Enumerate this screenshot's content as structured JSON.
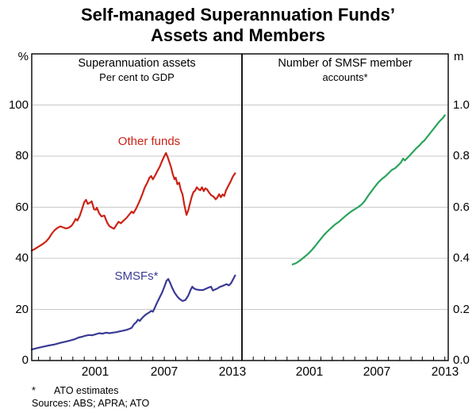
{
  "title": {
    "line1": "Self-managed Superannuation Funds’",
    "line2": "Assets and Members"
  },
  "footnote": {
    "marker": "*",
    "text": "ATO estimates"
  },
  "sources": "Sources: ABS; APRA; ATO",
  "chart_data": {
    "type": "line",
    "background": "#ffffff",
    "grid_color": "#c9c9c9",
    "frame_color": "#000000",
    "px": [
      40,
      565
    ],
    "py": [
      68,
      455
    ],
    "divider_x": 305,
    "panels": [
      {
        "name": "superannuation-assets",
        "header_line1": "Superannuation assets",
        "header_line2": "Per cent to GDP",
        "unit": "%",
        "px": [
          40,
          305
        ],
        "xlim": [
          1995.4,
          2013.8
        ],
        "ylim": [
          0,
          120
        ],
        "yticks": [
          0,
          20,
          40,
          60,
          80,
          100
        ],
        "ytick_labels": [
          "0",
          "20",
          "40",
          "60",
          "80",
          "100"
        ],
        "xtick_labels": [
          "2001",
          "2007",
          "2013"
        ],
        "xtick_label_years": [
          2001,
          2007,
          2013
        ],
        "minor_tick_years": {
          "start": 1996,
          "end": 2013
        },
        "series": [
          {
            "name": "Other funds",
            "color": "#cb2316",
            "points": [
              [
                1995.4,
                43.0
              ],
              [
                1995.65,
                43.6
              ],
              [
                1995.9,
                44.3
              ],
              [
                1996.15,
                45.0
              ],
              [
                1996.4,
                45.7
              ],
              [
                1996.65,
                46.6
              ],
              [
                1996.9,
                47.8
              ],
              [
                1997.15,
                49.6
              ],
              [
                1997.4,
                51.0
              ],
              [
                1997.65,
                51.9
              ],
              [
                1997.9,
                52.5
              ],
              [
                1998.15,
                52.1
              ],
              [
                1998.4,
                51.7
              ],
              [
                1998.65,
                52.0
              ],
              [
                1998.9,
                52.8
              ],
              [
                1999.1,
                54.2
              ],
              [
                1999.25,
                55.4
              ],
              [
                1999.4,
                54.8
              ],
              [
                1999.6,
                56.6
              ],
              [
                1999.8,
                59.3
              ],
              [
                2000.0,
                62.0
              ],
              [
                2000.15,
                62.9
              ],
              [
                2000.3,
                61.3
              ],
              [
                2000.5,
                61.8
              ],
              [
                2000.65,
                62.3
              ],
              [
                2000.85,
                59.2
              ],
              [
                2001.0,
                59.0
              ],
              [
                2001.1,
                59.8
              ],
              [
                2001.3,
                57.6
              ],
              [
                2001.5,
                56.4
              ],
              [
                2001.75,
                56.7
              ],
              [
                2002.0,
                54.0
              ],
              [
                2002.2,
                52.6
              ],
              [
                2002.45,
                51.9
              ],
              [
                2002.6,
                51.6
              ],
              [
                2002.8,
                53.0
              ],
              [
                2003.0,
                54.3
              ],
              [
                2003.2,
                53.7
              ],
              [
                2003.45,
                54.8
              ],
              [
                2003.7,
                55.8
              ],
              [
                2003.95,
                57.2
              ],
              [
                2004.15,
                58.3
              ],
              [
                2004.3,
                57.7
              ],
              [
                2004.5,
                59.2
              ],
              [
                2004.7,
                61.0
              ],
              [
                2004.9,
                63.0
              ],
              [
                2005.1,
                65.3
              ],
              [
                2005.3,
                67.8
              ],
              [
                2005.5,
                69.5
              ],
              [
                2005.7,
                71.5
              ],
              [
                2005.85,
                72.2
              ],
              [
                2006.0,
                70.9
              ],
              [
                2006.2,
                72.4
              ],
              [
                2006.4,
                74.2
              ],
              [
                2006.6,
                75.8
              ],
              [
                2006.8,
                78.0
              ],
              [
                2007.0,
                80.0
              ],
              [
                2007.15,
                81.2
              ],
              [
                2007.3,
                79.6
              ],
              [
                2007.45,
                77.6
              ],
              [
                2007.6,
                75.6
              ],
              [
                2007.75,
                72.8
              ],
              [
                2007.9,
                70.9
              ],
              [
                2008.0,
                71.6
              ],
              [
                2008.15,
                69.0
              ],
              [
                2008.3,
                69.6
              ],
              [
                2008.45,
                66.8
              ],
              [
                2008.6,
                65.0
              ],
              [
                2008.75,
                61.0
              ],
              [
                2008.95,
                57.0
              ],
              [
                2009.1,
                58.8
              ],
              [
                2009.25,
                61.5
              ],
              [
                2009.4,
                64.0
              ],
              [
                2009.55,
                65.9
              ],
              [
                2009.7,
                66.5
              ],
              [
                2009.85,
                67.8
              ],
              [
                2010.0,
                67.0
              ],
              [
                2010.15,
                66.6
              ],
              [
                2010.3,
                67.8
              ],
              [
                2010.45,
                66.3
              ],
              [
                2010.6,
                67.4
              ],
              [
                2010.75,
                66.9
              ],
              [
                2010.9,
                65.9
              ],
              [
                2011.1,
                64.7
              ],
              [
                2011.3,
                64.2
              ],
              [
                2011.5,
                63.1
              ],
              [
                2011.65,
                63.8
              ],
              [
                2011.8,
                65.1
              ],
              [
                2011.95,
                63.9
              ],
              [
                2012.1,
                65.0
              ],
              [
                2012.25,
                64.4
              ],
              [
                2012.4,
                66.5
              ],
              [
                2012.6,
                68.3
              ],
              [
                2012.8,
                70.0
              ],
              [
                2013.0,
                72.0
              ],
              [
                2013.2,
                73.3
              ]
            ]
          },
          {
            "name": "SMSFs*",
            "color": "#3a3a94",
            "points": [
              [
                1995.4,
                4.3
              ],
              [
                1995.9,
                4.9
              ],
              [
                1996.4,
                5.4
              ],
              [
                1996.9,
                5.9
              ],
              [
                1997.4,
                6.3
              ],
              [
                1997.9,
                6.9
              ],
              [
                1998.4,
                7.4
              ],
              [
                1998.9,
                8.0
              ],
              [
                1999.2,
                8.4
              ],
              [
                1999.5,
                9.0
              ],
              [
                1999.8,
                9.3
              ],
              [
                2000.1,
                9.7
              ],
              [
                2000.4,
                10.0
              ],
              [
                2000.7,
                9.9
              ],
              [
                2001.0,
                10.3
              ],
              [
                2001.3,
                10.7
              ],
              [
                2001.6,
                10.5
              ],
              [
                2001.9,
                10.9
              ],
              [
                2002.2,
                10.7
              ],
              [
                2002.5,
                10.9
              ],
              [
                2002.8,
                11.1
              ],
              [
                2003.1,
                11.4
              ],
              [
                2003.4,
                11.7
              ],
              [
                2003.7,
                12.0
              ],
              [
                2003.95,
                12.4
              ],
              [
                2004.15,
                12.8
              ],
              [
                2004.35,
                14.2
              ],
              [
                2004.55,
                15.0
              ],
              [
                2004.7,
                16.0
              ],
              [
                2004.85,
                15.5
              ],
              [
                2005.05,
                16.6
              ],
              [
                2005.25,
                17.5
              ],
              [
                2005.45,
                18.2
              ],
              [
                2005.65,
                18.7
              ],
              [
                2005.85,
                19.4
              ],
              [
                2006.0,
                19.1
              ],
              [
                2006.2,
                20.9
              ],
              [
                2006.4,
                22.9
              ],
              [
                2006.6,
                24.7
              ],
              [
                2006.8,
                26.5
              ],
              [
                2007.0,
                28.8
              ],
              [
                2007.2,
                31.2
              ],
              [
                2007.35,
                31.9
              ],
              [
                2007.5,
                30.5
              ],
              [
                2007.7,
                28.4
              ],
              [
                2007.9,
                26.6
              ],
              [
                2008.15,
                25.0
              ],
              [
                2008.4,
                23.9
              ],
              [
                2008.6,
                23.3
              ],
              [
                2008.85,
                23.7
              ],
              [
                2009.1,
                25.4
              ],
              [
                2009.3,
                27.6
              ],
              [
                2009.45,
                28.9
              ],
              [
                2009.6,
                28.2
              ],
              [
                2009.8,
                27.8
              ],
              [
                2010.1,
                27.6
              ],
              [
                2010.4,
                27.6
              ],
              [
                2010.65,
                28.1
              ],
              [
                2010.9,
                28.6
              ],
              [
                2011.1,
                28.9
              ],
              [
                2011.25,
                27.4
              ],
              [
                2011.45,
                27.8
              ],
              [
                2011.65,
                28.2
              ],
              [
                2011.85,
                28.8
              ],
              [
                2012.05,
                29.1
              ],
              [
                2012.25,
                29.5
              ],
              [
                2012.45,
                29.9
              ],
              [
                2012.65,
                29.4
              ],
              [
                2012.85,
                30.3
              ],
              [
                2013.0,
                31.6
              ],
              [
                2013.2,
                33.3
              ]
            ]
          }
        ]
      },
      {
        "name": "smsf-member-accounts",
        "header_line1": "Number of SMSF member",
        "header_line2": "accounts*",
        "unit": "m",
        "px": [
          305,
          565
        ],
        "xlim": [
          1995.0,
          2013.3
        ],
        "ylim": [
          0,
          1.2
        ],
        "yticks": [
          0,
          0.2,
          0.4,
          0.6,
          0.8,
          1.0
        ],
        "ytick_labels": [
          "0.0",
          "0.2",
          "0.4",
          "0.6",
          "0.8",
          "1.0"
        ],
        "xtick_labels": [
          "2001",
          "2007",
          "2013"
        ],
        "xtick_label_years": [
          2001,
          2007,
          2013
        ],
        "minor_tick_years": {
          "start": 1996,
          "end": 2013
        },
        "series": [
          {
            "name": "SMSF member accounts",
            "color": "#29a35a",
            "points": [
              [
                1999.5,
                0.376
              ],
              [
                1999.8,
                0.381
              ],
              [
                2000.1,
                0.39
              ],
              [
                2000.45,
                0.402
              ],
              [
                2000.8,
                0.415
              ],
              [
                2001.15,
                0.43
              ],
              [
                2001.5,
                0.448
              ],
              [
                2001.85,
                0.468
              ],
              [
                2002.2,
                0.487
              ],
              [
                2002.55,
                0.504
              ],
              [
                2002.9,
                0.518
              ],
              [
                2003.25,
                0.532
              ],
              [
                2003.6,
                0.543
              ],
              [
                2003.95,
                0.557
              ],
              [
                2004.3,
                0.57
              ],
              [
                2004.65,
                0.582
              ],
              [
                2005.0,
                0.592
              ],
              [
                2005.3,
                0.6
              ],
              [
                2005.6,
                0.61
              ],
              [
                2005.9,
                0.625
              ],
              [
                2006.2,
                0.645
              ],
              [
                2006.5,
                0.663
              ],
              [
                2006.8,
                0.681
              ],
              [
                2007.1,
                0.697
              ],
              [
                2007.4,
                0.71
              ],
              [
                2007.7,
                0.72
              ],
              [
                2008.0,
                0.733
              ],
              [
                2008.3,
                0.746
              ],
              [
                2008.6,
                0.753
              ],
              [
                2008.9,
                0.766
              ],
              [
                2009.1,
                0.775
              ],
              [
                2009.3,
                0.79
              ],
              [
                2009.45,
                0.783
              ],
              [
                2009.7,
                0.794
              ],
              [
                2009.95,
                0.806
              ],
              [
                2010.2,
                0.818
              ],
              [
                2010.45,
                0.83
              ],
              [
                2010.7,
                0.84
              ],
              [
                2010.95,
                0.852
              ],
              [
                2011.2,
                0.862
              ],
              [
                2011.45,
                0.876
              ],
              [
                2011.7,
                0.89
              ],
              [
                2011.95,
                0.904
              ],
              [
                2012.2,
                0.918
              ],
              [
                2012.45,
                0.932
              ],
              [
                2012.7,
                0.944
              ],
              [
                2012.85,
                0.95
              ],
              [
                2013.0,
                0.96
              ]
            ]
          }
        ]
      }
    ]
  }
}
